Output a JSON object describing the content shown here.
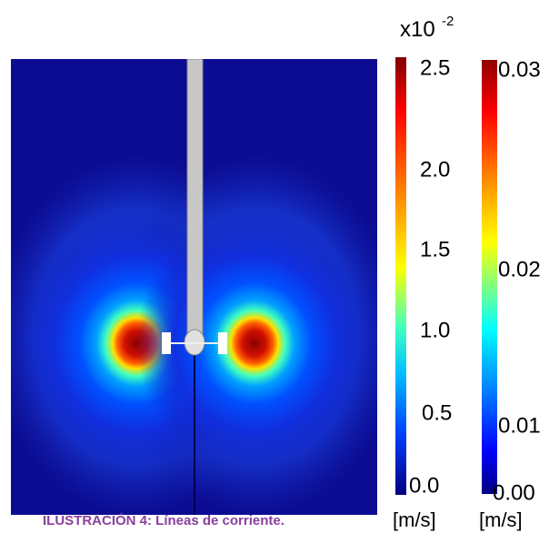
{
  "figure": {
    "caption": "ILUSTRACIÓN 4: Líneas de corriente.",
    "colorbar_left": {
      "multiplier": "x10",
      "exponent": "-2",
      "ticks": [
        "2.5",
        "2.0",
        "1.5",
        "1.0",
        "0.5",
        "0.0"
      ],
      "unit": "[m/s]"
    },
    "colorbar_right": {
      "ticks": [
        "0.03",
        "0.02",
        "0.01",
        "0.00"
      ],
      "unit": "[m/s]"
    }
  }
}
